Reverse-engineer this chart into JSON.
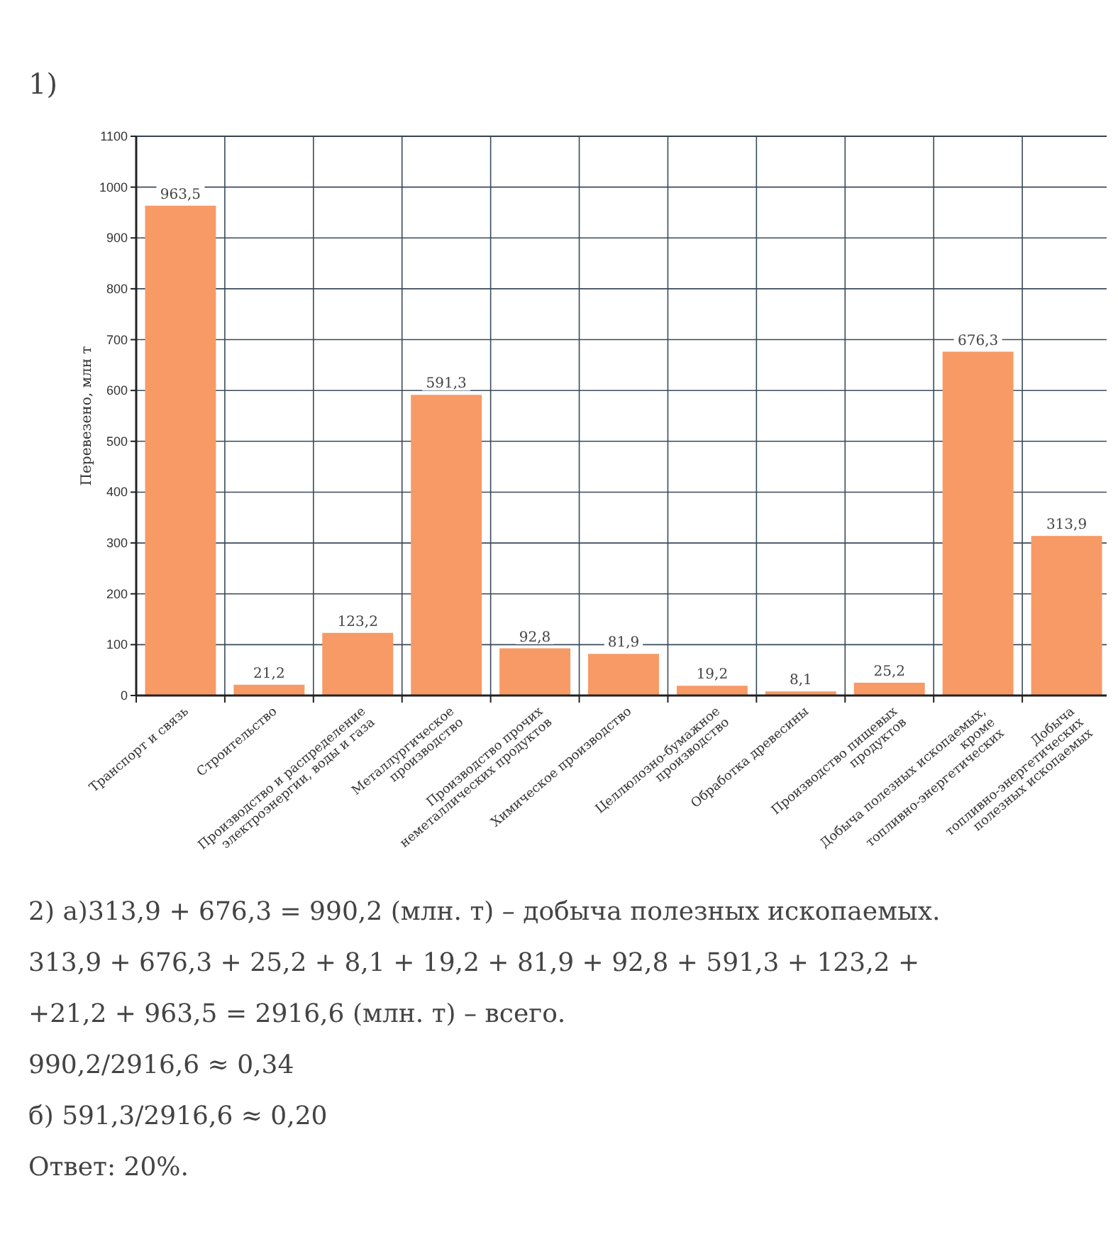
{
  "chart_data": {
    "type": "bar",
    "title": "1)",
    "ylabel": "Перевезено, млн т",
    "categories": [
      "Транспорт и связь",
      "Строительство",
      "Производство и распределение электроэнергии, воды и газа",
      "Металлургическое производство",
      "Производство прочих неметаллических продуктов",
      "Химическое производство",
      "Целлюлозно-бумажное производство",
      "Обработка древесины",
      "Производство пищевых продуктов",
      "Добыча полезных ископаемых, кроме топливно-энергетических",
      "Добыча топливно-энергетических полезных ископаемых"
    ],
    "values": [
      963.5,
      21.2,
      123.2,
      591.3,
      92.8,
      81.9,
      19.2,
      8.1,
      25.2,
      676.3,
      313.9
    ],
    "value_labels": [
      "963,5",
      "21,2",
      "123,2",
      "591,3",
      "92,8",
      "81,9",
      "19,2",
      "8,1",
      "25,2",
      "676,3",
      "313,9"
    ],
    "color": "#f79a66",
    "ylim": [
      0,
      1100
    ],
    "yticks": [
      0,
      100,
      200,
      300,
      400,
      500,
      600,
      700,
      800,
      900,
      1000,
      1100
    ],
    "grid": true,
    "annotations": [
      "2) а)313,9 + 676,3 = 990,2 (млн. т) – добыча полезных ископаемых.",
      "313,9 + 676,3 + 25,2 + 8,1 + 19,2 + 81,9 + 92,8 + 591,3 + 123,2 +",
      "+21,2 + 963,5 = 2916,6 (млн. т) – всего.",
      "990,2/2916,6 ≈ 0,34",
      "б) 591,3/2916,6 ≈ 0,20",
      "Ответ: 20%."
    ]
  }
}
